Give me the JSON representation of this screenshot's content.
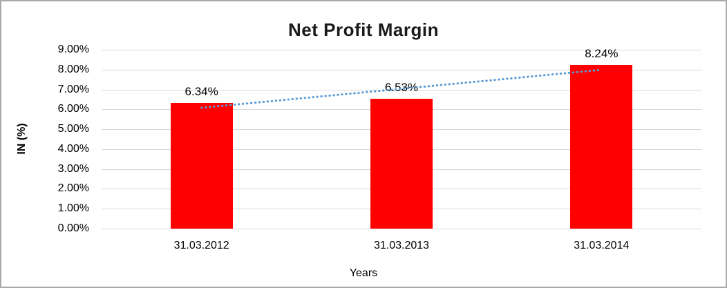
{
  "chart_data": {
    "type": "bar",
    "title": "Net Profit Margin",
    "xlabel": "Years",
    "ylabel": "IN (%)",
    "categories": [
      "31.03.2012",
      "31.03.2013",
      "31.03.2014"
    ],
    "values": [
      6.34,
      6.53,
      8.24
    ],
    "data_labels": [
      "6.34%",
      "6.53%",
      "8.24%"
    ],
    "y_tick_values": [
      9,
      8,
      7,
      6,
      5,
      4,
      3,
      2,
      1,
      0
    ],
    "y_tick_labels": [
      "9.00%",
      "8.00%",
      "7.00%",
      "6.00%",
      "5.00%",
      "4.00%",
      "3.00%",
      "2.00%",
      "1.00%",
      "0.00%"
    ],
    "ylim": [
      0,
      9
    ],
    "grid": true,
    "legend": "none",
    "bar_color": "#ff0000",
    "gridline_color": "#d9d9d9",
    "trendline": {
      "type": "linear",
      "style": "dotted",
      "color": "#5b9bd5",
      "start_value": 6.08,
      "end_value": 7.99
    }
  }
}
